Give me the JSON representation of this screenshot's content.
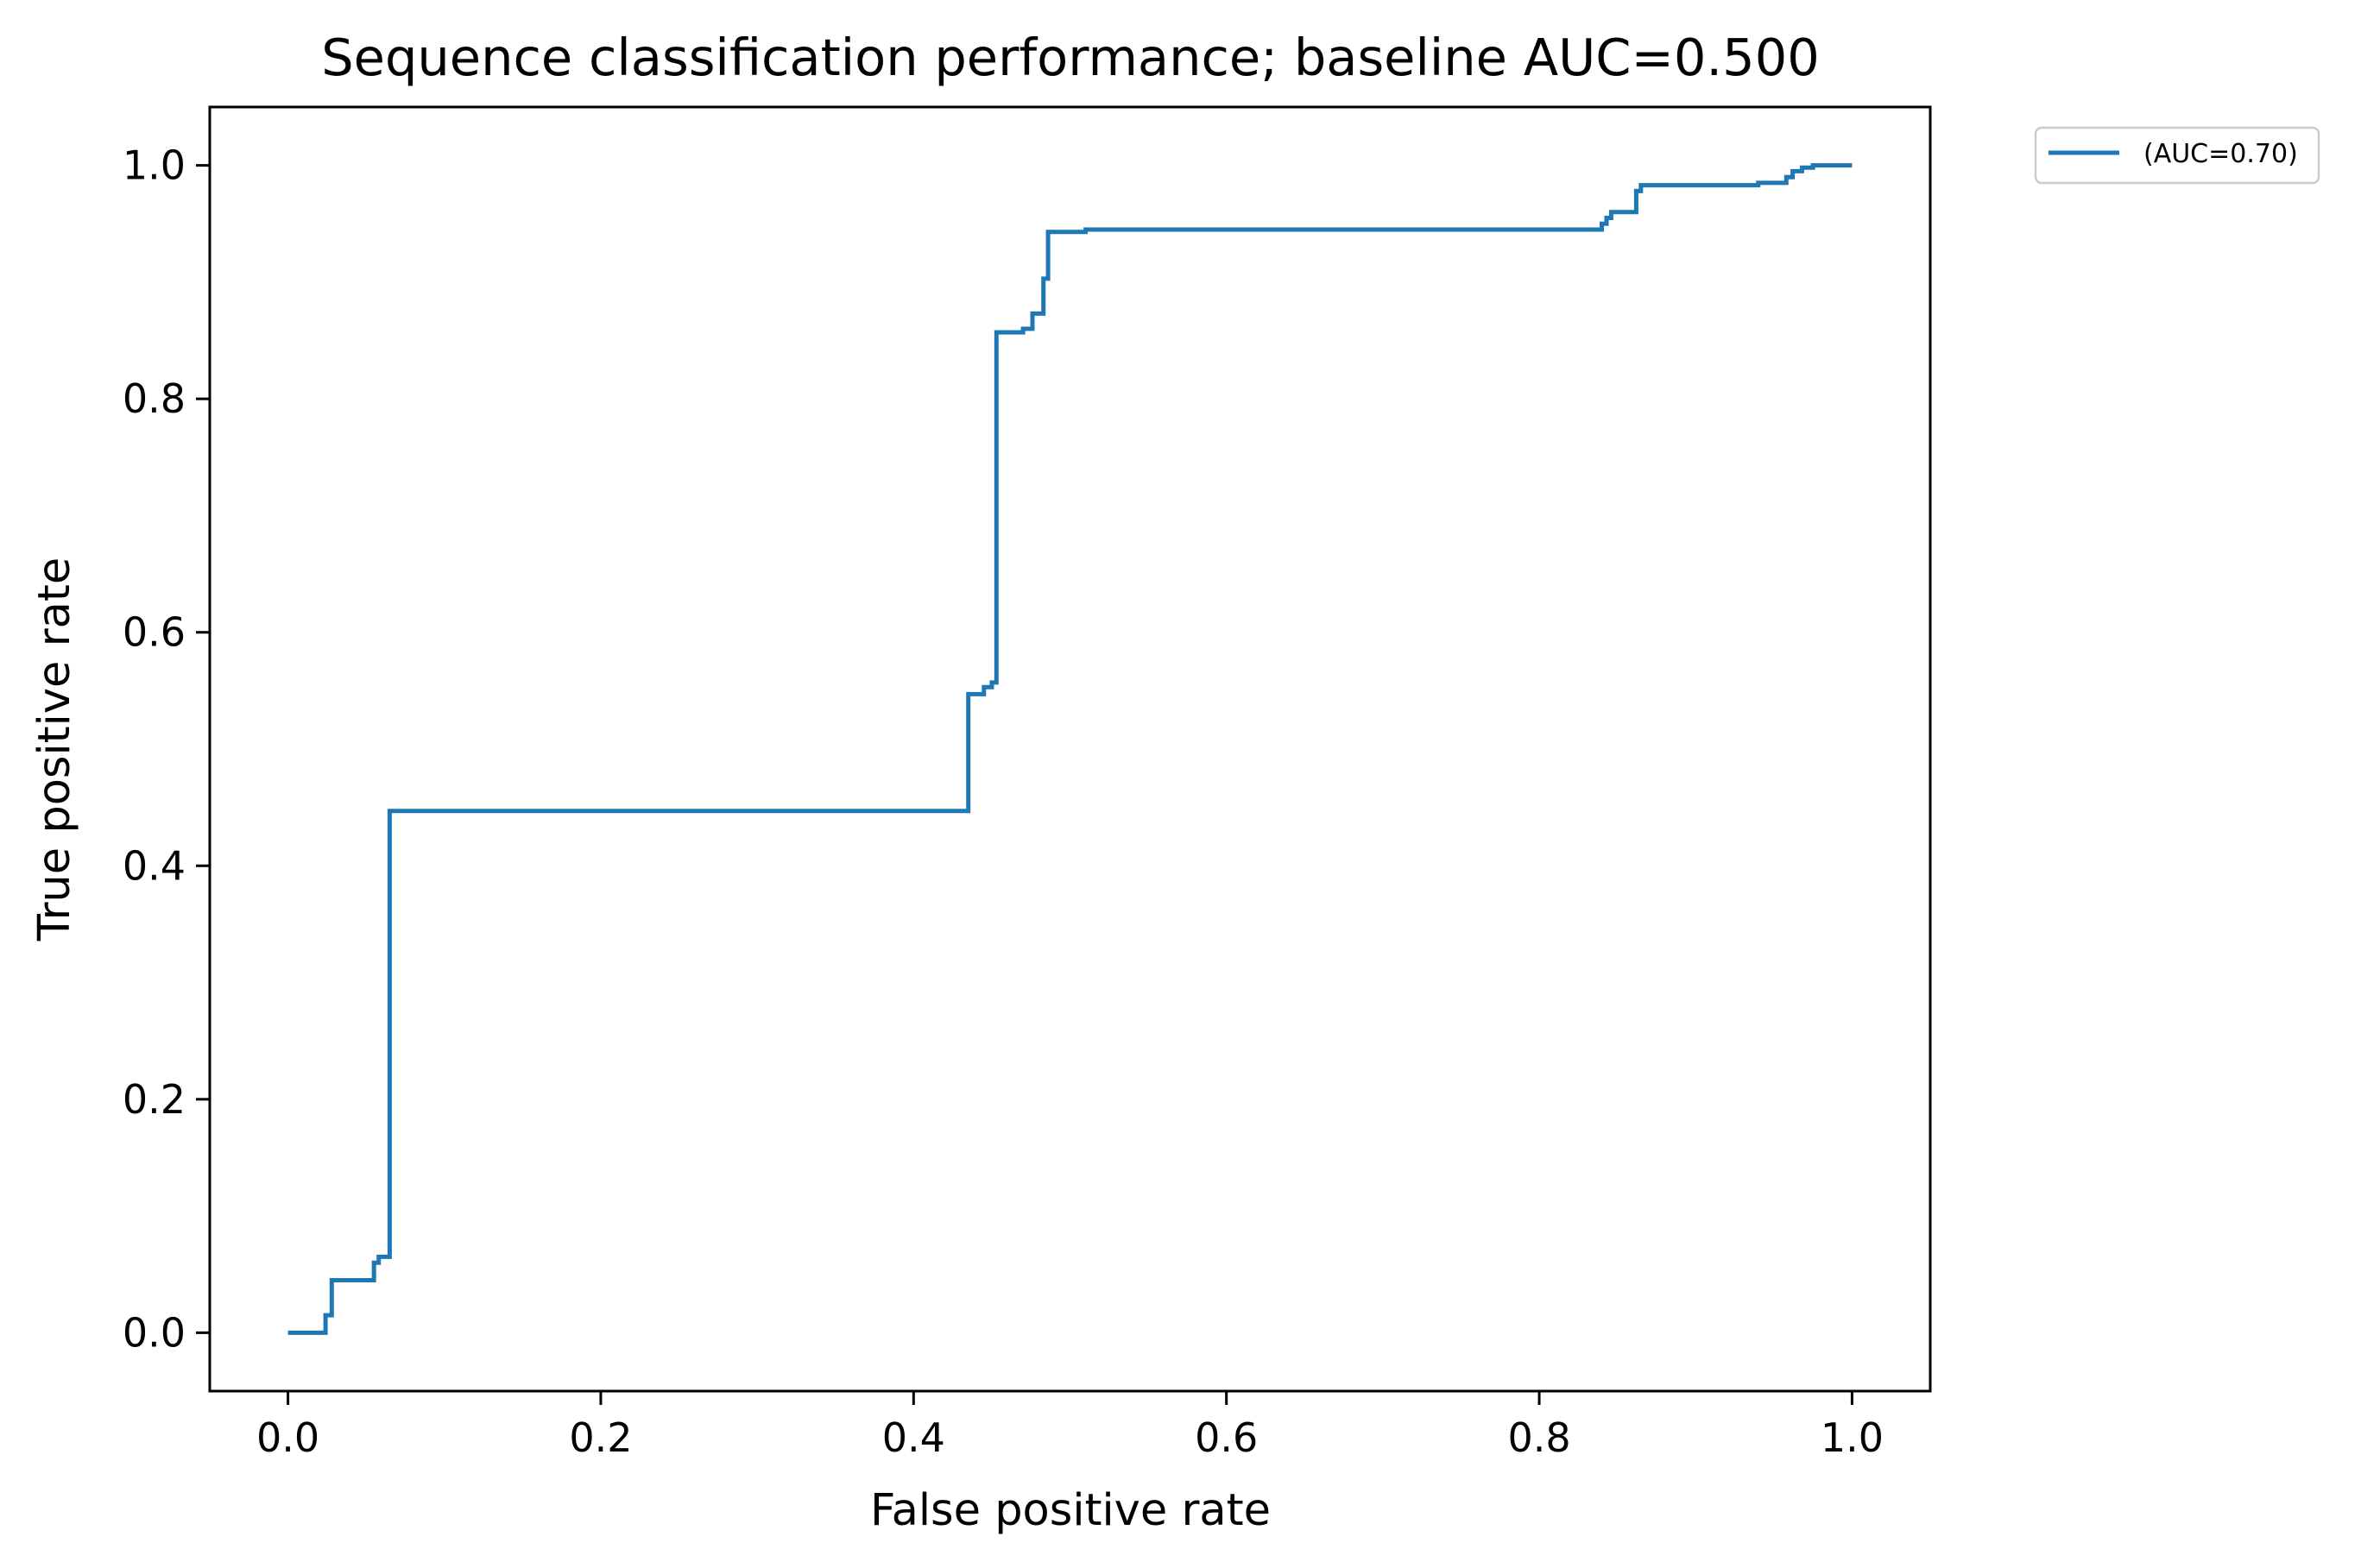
{
  "chart_data": {
    "type": "line",
    "title": "Sequence classification performance; baseline AUC=0.500",
    "xlabel": "False positive rate",
    "ylabel": "True positive rate",
    "xlim": [
      -0.05,
      1.05
    ],
    "ylim": [
      -0.05,
      1.05
    ],
    "xticks": [
      0.0,
      0.2,
      0.4,
      0.6,
      0.8,
      1.0
    ],
    "xtick_labels": [
      "0.0",
      "0.2",
      "0.4",
      "0.6",
      "0.8",
      "1.0"
    ],
    "yticks": [
      0.0,
      0.2,
      0.4,
      0.6,
      0.8,
      1.0
    ],
    "ytick_labels": [
      "0.0",
      "0.2",
      "0.4",
      "0.6",
      "0.8",
      "1.0"
    ],
    "grid": false,
    "legend": {
      "placement": "outside-top-right",
      "entries": [
        "(AUC=0.70)"
      ]
    },
    "colors": {
      "series": "#1f77b4",
      "axes": "#000000",
      "background": "#ffffff",
      "legend_border": "#cccccc"
    },
    "series": [
      {
        "name": "(AUC=0.70)",
        "x": [
          0.0,
          0.024,
          0.024,
          0.028,
          0.028,
          0.055,
          0.055,
          0.058,
          0.058,
          0.065,
          0.065,
          0.435,
          0.435,
          0.445,
          0.445,
          0.45,
          0.45,
          0.453,
          0.453,
          0.47,
          0.47,
          0.476,
          0.476,
          0.483,
          0.483,
          0.486,
          0.486,
          0.51,
          0.51,
          0.84,
          0.84,
          0.843,
          0.843,
          0.846,
          0.846,
          0.862,
          0.862,
          0.865,
          0.865,
          0.94,
          0.94,
          0.958,
          0.958,
          0.962,
          0.962,
          0.968,
          0.968,
          0.975,
          0.975,
          1.0
        ],
        "y": [
          0.0,
          0.0,
          0.015,
          0.015,
          0.045,
          0.045,
          0.06,
          0.06,
          0.065,
          0.065,
          0.447,
          0.447,
          0.547,
          0.547,
          0.553,
          0.553,
          0.557,
          0.557,
          0.857,
          0.857,
          0.86,
          0.86,
          0.873,
          0.873,
          0.903,
          0.903,
          0.943,
          0.943,
          0.945,
          0.945,
          0.95,
          0.95,
          0.955,
          0.955,
          0.96,
          0.96,
          0.978,
          0.978,
          0.983,
          0.983,
          0.985,
          0.985,
          0.99,
          0.99,
          0.995,
          0.995,
          0.998,
          0.998,
          1.0,
          1.0
        ]
      }
    ]
  }
}
